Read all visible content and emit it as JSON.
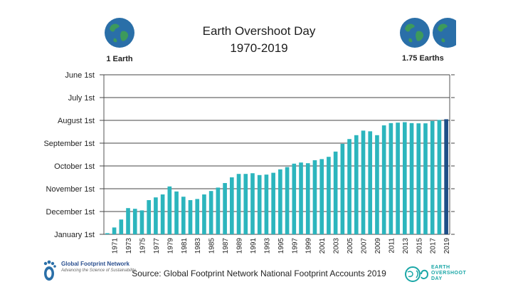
{
  "title_line1": "Earth Overshoot Day",
  "title_line2": "1970-2019",
  "left_badge": "1 Earth",
  "right_badge": "1.75 Earths",
  "source": "Source: Global Footprint Network National Footprint Accounts 2019",
  "gfn_logo": {
    "name": "Global Footprint Network",
    "tagline": "Advancing the Science of Sustainability"
  },
  "eod_logo": {
    "line1": "EARTH",
    "line2": "OVERSHOOT",
    "line3": "DAY"
  },
  "colors": {
    "bar": "#2cb5bd",
    "bar_highlight": "#1d4e86",
    "grid": "#444444",
    "globe_ocean": "#2a6fa8",
    "globe_land": "#3d9a5c"
  },
  "chart_data": {
    "type": "bar",
    "title": "Earth Overshoot Day 1970-2019",
    "xlabel": "",
    "ylabel": "",
    "y_axis_ticks": [
      "June 1st",
      "July 1st",
      "August 1st",
      "September 1st",
      "October 1st",
      "November 1st",
      "December 1st",
      "January 1st"
    ],
    "y_unit": "months before year end (January 1st = 0)",
    "ylim": [
      0,
      7
    ],
    "x_tick_labels": [
      "1971",
      "1973",
      "1975",
      "1977",
      "1979",
      "1981",
      "1983",
      "1985",
      "1987",
      "1989",
      "1991",
      "1993",
      "1995",
      "1997",
      "1999",
      "2001",
      "2003",
      "2005",
      "2007",
      "2009",
      "2011",
      "2013",
      "2015",
      "2017",
      "2019"
    ],
    "categories": [
      1970,
      1971,
      1972,
      1973,
      1974,
      1975,
      1976,
      1977,
      1978,
      1979,
      1980,
      1981,
      1982,
      1983,
      1984,
      1985,
      1986,
      1987,
      1988,
      1989,
      1990,
      1991,
      1992,
      1993,
      1994,
      1995,
      1996,
      1997,
      1998,
      1999,
      2000,
      2001,
      2002,
      2003,
      2004,
      2005,
      2006,
      2007,
      2008,
      2009,
      2010,
      2011,
      2012,
      2013,
      2014,
      2015,
      2016,
      2017,
      2018,
      2019
    ],
    "values": [
      0.05,
      0.3,
      0.65,
      1.15,
      1.12,
      1.05,
      1.5,
      1.62,
      1.75,
      2.1,
      1.88,
      1.65,
      1.5,
      1.55,
      1.75,
      1.9,
      2.05,
      2.25,
      2.5,
      2.65,
      2.65,
      2.68,
      2.6,
      2.62,
      2.7,
      2.85,
      2.95,
      3.1,
      3.15,
      3.12,
      3.25,
      3.3,
      3.4,
      3.63,
      3.97,
      4.18,
      4.35,
      4.55,
      4.52,
      4.35,
      4.78,
      4.88,
      4.9,
      4.92,
      4.88,
      4.87,
      4.87,
      4.97,
      5.02,
      5.05
    ],
    "highlight_index": 49,
    "grid": "horizontal"
  }
}
